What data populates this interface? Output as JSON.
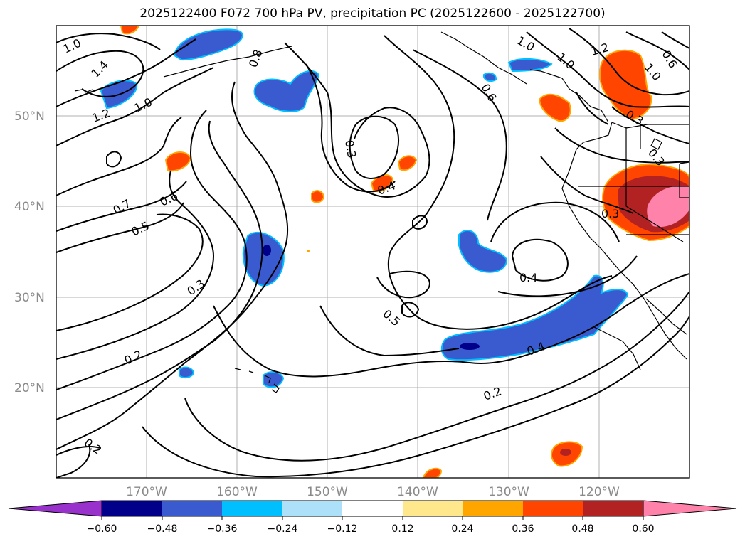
{
  "title": "2025122400 F072 700 hPa PV, precipitation PC (2025122600 - 2025122700)",
  "lat_ticks": [
    "50°N",
    "40°N",
    "30°N",
    "20°N"
  ],
  "lon_ticks": [
    "170°W",
    "160°W",
    "150°W",
    "140°W",
    "130°W",
    "120°W"
  ],
  "map_extent": {
    "lon": [
      -180,
      -110
    ],
    "lat": [
      10,
      60
    ]
  },
  "colorbar": {
    "ticks": [
      "−0.60",
      "−0.48",
      "−0.36",
      "−0.24",
      "−0.12",
      "0.12",
      "0.24",
      "0.36",
      "0.48",
      "0.60"
    ],
    "colors": [
      "#9932CC",
      "#00008B",
      "#3A5BCF",
      "#00BFFF",
      "#ADE1FA",
      "#FFFFFF",
      "#FFE88C",
      "#FFA500",
      "#FF4500",
      "#B22222",
      "#FF82AB"
    ]
  },
  "contour_labels": [
    "1.0",
    "1.4",
    "1.2",
    "1.0",
    "0.8",
    "0.6",
    "1.0",
    "1.0",
    "1.2",
    "1.0",
    "0.6",
    "0.7",
    "0.6",
    "0.5",
    "0.3",
    "0.3",
    "0.4",
    "0.3",
    "0.3",
    "0.4",
    "0.5",
    "0.3",
    "0.2",
    "0.4",
    "0.2",
    "0.2"
  ]
}
